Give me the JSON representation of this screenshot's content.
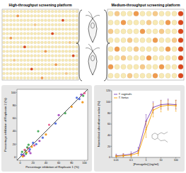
{
  "plates": [
    {
      "title": "High-throughput screening platform",
      "rows": 16,
      "cols": 22,
      "hits": [
        [
          1,
          4,
          2
        ],
        [
          2,
          17,
          3
        ],
        [
          3,
          9,
          1
        ],
        [
          5,
          14,
          3
        ],
        [
          6,
          2,
          2
        ],
        [
          7,
          19,
          1
        ],
        [
          8,
          6,
          3
        ],
        [
          9,
          12,
          2
        ],
        [
          10,
          20,
          3
        ],
        [
          11,
          3,
          1
        ],
        [
          12,
          15,
          2
        ],
        [
          13,
          8,
          3
        ],
        [
          14,
          18,
          1
        ],
        [
          15,
          11,
          2
        ]
      ]
    },
    {
      "title": "Medium-throughput screening platform",
      "rows": 8,
      "cols": 12,
      "hits": [
        [
          0,
          1,
          1
        ],
        [
          0,
          4,
          2
        ],
        [
          0,
          7,
          1
        ],
        [
          0,
          11,
          3
        ],
        [
          1,
          2,
          2
        ],
        [
          1,
          6,
          1
        ],
        [
          1,
          9,
          2
        ],
        [
          1,
          11,
          3
        ],
        [
          2,
          0,
          1
        ],
        [
          2,
          5,
          2
        ],
        [
          2,
          8,
          1
        ],
        [
          2,
          11,
          3
        ],
        [
          3,
          3,
          1
        ],
        [
          3,
          7,
          2
        ],
        [
          3,
          10,
          1
        ],
        [
          3,
          11,
          3
        ],
        [
          4,
          1,
          2
        ],
        [
          4,
          4,
          1
        ],
        [
          4,
          9,
          2
        ],
        [
          4,
          11,
          3
        ],
        [
          5,
          2,
          1
        ],
        [
          5,
          6,
          2
        ],
        [
          5,
          11,
          3
        ],
        [
          6,
          0,
          2
        ],
        [
          6,
          5,
          1
        ],
        [
          6,
          8,
          2
        ],
        [
          6,
          11,
          3
        ],
        [
          7,
          3,
          1
        ],
        [
          7,
          7,
          2
        ],
        [
          7,
          11,
          3
        ]
      ]
    }
  ],
  "chart_data": [
    {
      "type": "scatter",
      "x_label": "Percentage inhibition of Replicate 1 (%)",
      "y_label": "Percentage inhibition of Replicate 2 (%)",
      "xlim": [
        -5,
        105
      ],
      "ylim": [
        -5,
        105
      ],
      "xticks": [
        0,
        20,
        40,
        60,
        80,
        100
      ],
      "yticks": [
        0,
        20,
        40,
        60,
        80,
        100
      ],
      "x": [
        2,
        5,
        8,
        10,
        12,
        15,
        3,
        6,
        18,
        20,
        22,
        9,
        14,
        25,
        4,
        7,
        11,
        30,
        35,
        28,
        40,
        45,
        55,
        60,
        70,
        80,
        92,
        95,
        98,
        100,
        97,
        88,
        16,
        13
      ],
      "values": [
        4,
        3,
        10,
        7,
        14,
        12,
        8,
        2,
        16,
        22,
        18,
        5,
        9,
        20,
        1,
        11,
        15,
        25,
        30,
        40,
        35,
        50,
        52,
        65,
        68,
        78,
        90,
        97,
        95,
        99,
        85,
        92,
        6,
        19
      ],
      "colors": [
        "#3b5bdb",
        "#9c36b5",
        "#2f9e44",
        "#f08c00",
        "#e64980",
        "#3b5bdb",
        "#2f9e44",
        "#9c36b5",
        "#f08c00",
        "#3b5bdb",
        "#e64980",
        "#2f9e44",
        "#9c36b5",
        "#3b5bdb",
        "#f08c00",
        "#e64980",
        "#2f9e44",
        "#9c36b5",
        "#3b5bdb",
        "#2f9e44",
        "#f08c00",
        "#e64980",
        "#3b5bdb",
        "#9c36b5",
        "#2f9e44",
        "#f08c00",
        "#3b5bdb",
        "#9c36b5",
        "#2f9e44",
        "#e64980",
        "#f08c00",
        "#3b5bdb",
        "#9c36b5",
        "#2f9e44"
      ]
    },
    {
      "type": "line",
      "log": "x",
      "x_label": "[Fenugelin] (ng/ml)",
      "y_label": "Normalised absorbance value (%)",
      "x": [
        0.01,
        0.03,
        0.1,
        0.3,
        1,
        3,
        10,
        30,
        100
      ],
      "xlim": [
        0.005,
        200
      ],
      "ylim": [
        0,
        120
      ],
      "xticks": [
        0.01,
        0.1,
        1,
        10,
        100
      ],
      "yticks": [
        0,
        20,
        40,
        60,
        80,
        100,
        120
      ],
      "legend": "upper left",
      "series": [
        {
          "name": "T. vaginalis",
          "color": "#7b3fb5",
          "values": [
            3,
            4,
            6,
            12,
            65,
            90,
            95,
            96,
            95
          ],
          "errors": [
            3,
            3,
            4,
            6,
            12,
            10,
            8,
            9,
            8
          ]
        },
        {
          "name": "T. foetus",
          "color": "#f59f00",
          "values": [
            2,
            3,
            4,
            8,
            50,
            85,
            92,
            94,
            93
          ],
          "errors": [
            2,
            3,
            3,
            5,
            14,
            12,
            10,
            9,
            10
          ]
        }
      ]
    }
  ]
}
